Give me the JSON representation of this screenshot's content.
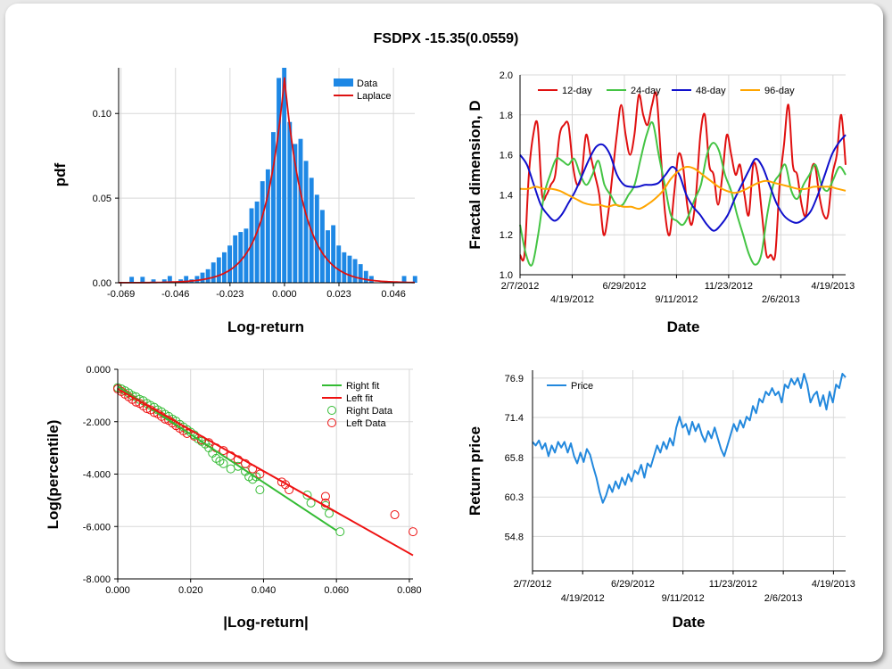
{
  "title": "FSDPX -15.35(0.0559)",
  "colors": {
    "bar": "#1e88e5",
    "laplace": "#dd1111",
    "d12": "#e01010",
    "d24": "#44c444",
    "d48": "#1010cc",
    "d96": "#ffa500",
    "right": "#33bb33",
    "left": "#ee1111",
    "price": "#2288dd"
  },
  "chart_data": [
    {
      "id": "hist",
      "type": "bar",
      "xlabel": "Log-return",
      "ylabel": "pdf",
      "xlim": [
        -0.07,
        0.055
      ],
      "ylim": [
        0,
        0.127
      ],
      "xticks": [
        "-0.069",
        "-0.046",
        "-0.023",
        "0.000",
        "0.023",
        "0.046"
      ],
      "xtick_values": [
        -0.069,
        -0.046,
        -0.023,
        0.0,
        0.023,
        0.046
      ],
      "yticks": [
        "0.00",
        "0.05",
        "0.10"
      ],
      "ytick_values": [
        0.0,
        0.05,
        0.1
      ],
      "legend": [
        "Data",
        "Laplace"
      ],
      "bin_width": 0.0023,
      "bins_x": [
        -0.0645,
        -0.0599,
        -0.0553,
        -0.0507,
        -0.0484,
        -0.0438,
        -0.0415,
        -0.0392,
        -0.0369,
        -0.0346,
        -0.0323,
        -0.03,
        -0.0277,
        -0.0254,
        -0.0231,
        -0.0208,
        -0.0185,
        -0.0162,
        -0.0139,
        -0.0116,
        -0.0093,
        -0.007,
        -0.0047,
        -0.0024,
        -0.0001,
        0.0022,
        0.0045,
        0.0068,
        0.0091,
        0.0114,
        0.0137,
        0.016,
        0.0183,
        0.0206,
        0.0229,
        0.0252,
        0.0275,
        0.0298,
        0.0321,
        0.0344,
        0.0367,
        0.0505,
        0.0551
      ],
      "bins_y": [
        0.0035,
        0.0035,
        0.002,
        0.002,
        0.004,
        0.002,
        0.004,
        0.002,
        0.004,
        0.006,
        0.008,
        0.012,
        0.015,
        0.018,
        0.022,
        0.028,
        0.03,
        0.032,
        0.044,
        0.048,
        0.06,
        0.067,
        0.089,
        0.121,
        0.127,
        0.095,
        0.082,
        0.085,
        0.072,
        0.062,
        0.052,
        0.043,
        0.031,
        0.034,
        0.022,
        0.018,
        0.016,
        0.014,
        0.011,
        0.007,
        0.004,
        0.004,
        0.004
      ],
      "laplace": {
        "mu": 0.0,
        "peak": 0.121,
        "b": 0.0083
      }
    },
    {
      "id": "fractal",
      "type": "line",
      "xlabel": "Date",
      "ylabel": "Fractal dimension, D",
      "ylim": [
        1.0,
        2.0
      ],
      "xlim": [
        0,
        103
      ],
      "yticks": [
        "1.0",
        "1.2",
        "1.4",
        "1.6",
        "1.8",
        "2.0"
      ],
      "ytick_values": [
        1.0,
        1.2,
        1.4,
        1.6,
        1.8,
        2.0
      ],
      "xticks_top": [
        "2/7/2012",
        "6/29/2012",
        "11/23/2012",
        "4/19/2013"
      ],
      "xticks_top_pos": [
        0,
        33,
        66,
        99
      ],
      "xticks_bottom": [
        "4/19/2012",
        "9/11/2012",
        "2/6/2013"
      ],
      "xticks_bottom_pos": [
        16.5,
        49.5,
        82.5
      ],
      "series": [
        {
          "name": "12-day",
          "values": [
            1.1,
            1.1,
            1.5,
            1.7,
            1.75,
            1.4,
            1.4,
            1.45,
            1.5,
            1.7,
            1.75,
            1.75,
            1.55,
            1.45,
            1.5,
            1.7,
            1.6,
            1.5,
            1.4,
            1.2,
            1.3,
            1.5,
            1.7,
            1.85,
            1.7,
            1.6,
            1.7,
            1.9,
            1.8,
            1.75,
            1.85,
            1.9,
            1.6,
            1.3,
            1.2,
            1.4,
            1.6,
            1.55,
            1.35,
            1.25,
            1.4,
            1.7,
            1.8,
            1.55,
            1.5,
            1.35,
            1.5,
            1.7,
            1.6,
            1.5,
            1.55,
            1.4,
            1.3,
            1.55,
            1.5,
            1.3,
            1.1,
            1.1,
            1.1,
            1.45,
            1.65,
            1.85,
            1.55,
            1.5,
            1.35,
            1.3,
            1.5,
            1.55,
            1.4,
            1.3,
            1.3,
            1.5,
            1.6,
            1.8,
            1.55
          ]
        },
        {
          "name": "24-day",
          "values": [
            1.25,
            1.1,
            1.05,
            1.2,
            1.4,
            1.5,
            1.58,
            1.57,
            1.55,
            1.58,
            1.5,
            1.45,
            1.5,
            1.57,
            1.45,
            1.4,
            1.35,
            1.35,
            1.4,
            1.45,
            1.58,
            1.7,
            1.76,
            1.6,
            1.45,
            1.3,
            1.27,
            1.25,
            1.3,
            1.38,
            1.45,
            1.6,
            1.66,
            1.62,
            1.5,
            1.42,
            1.3,
            1.2,
            1.1,
            1.05,
            1.1,
            1.3,
            1.45,
            1.5,
            1.55,
            1.42,
            1.38,
            1.45,
            1.5,
            1.55,
            1.45,
            1.42,
            1.48,
            1.54,
            1.5
          ]
        },
        {
          "name": "48-day",
          "values": [
            1.6,
            1.55,
            1.45,
            1.35,
            1.3,
            1.27,
            1.3,
            1.36,
            1.42,
            1.5,
            1.58,
            1.64,
            1.65,
            1.6,
            1.5,
            1.45,
            1.44,
            1.44,
            1.45,
            1.45,
            1.46,
            1.5,
            1.54,
            1.5,
            1.4,
            1.34,
            1.3,
            1.25,
            1.22,
            1.25,
            1.3,
            1.38,
            1.45,
            1.52,
            1.58,
            1.54,
            1.45,
            1.36,
            1.3,
            1.27,
            1.26,
            1.28,
            1.32,
            1.4,
            1.5,
            1.6,
            1.66,
            1.7
          ]
        },
        {
          "name": "96-day",
          "values": [
            1.43,
            1.43,
            1.44,
            1.43,
            1.43,
            1.42,
            1.4,
            1.38,
            1.36,
            1.35,
            1.35,
            1.34,
            1.35,
            1.34,
            1.34,
            1.33,
            1.35,
            1.38,
            1.42,
            1.48,
            1.52,
            1.54,
            1.53,
            1.5,
            1.47,
            1.44,
            1.42,
            1.41,
            1.42,
            1.44,
            1.46,
            1.47,
            1.46,
            1.45,
            1.44,
            1.43,
            1.43,
            1.44,
            1.44,
            1.44,
            1.43,
            1.42
          ]
        }
      ]
    },
    {
      "id": "tail",
      "type": "scatter",
      "xlabel": "|Log-return|",
      "ylabel": "Log(percentile)",
      "xlim": [
        0,
        0.081
      ],
      "ylim": [
        -8.0,
        0.0
      ],
      "xticks": [
        "0.000",
        "0.020",
        "0.040",
        "0.060",
        "0.080"
      ],
      "xtick_values": [
        0.0,
        0.02,
        0.04,
        0.06,
        0.08
      ],
      "yticks": [
        "0.000",
        "-2.000",
        "-4.000",
        "-6.000",
        "-8.000"
      ],
      "ytick_values": [
        0.0,
        -2.0,
        -4.0,
        -6.0,
        -8.0
      ],
      "legend": [
        "Right fit",
        "Left fit",
        "Right Data",
        "Left Data"
      ],
      "right_fit": {
        "x": [
          0.0,
          0.06
        ],
        "y": [
          -0.65,
          -6.15
        ]
      },
      "left_fit": {
        "x": [
          0.0,
          0.081
        ],
        "y": [
          -0.75,
          -7.1
        ]
      },
      "right_data": {
        "x": [
          0.0,
          0.001,
          0.002,
          0.003,
          0.004,
          0.005,
          0.006,
          0.007,
          0.008,
          0.009,
          0.01,
          0.011,
          0.012,
          0.013,
          0.014,
          0.015,
          0.016,
          0.017,
          0.018,
          0.019,
          0.02,
          0.021,
          0.022,
          0.023,
          0.024,
          0.025,
          0.026,
          0.027,
          0.028,
          0.029,
          0.031,
          0.033,
          0.035,
          0.036,
          0.037,
          0.038,
          0.039,
          0.052,
          0.053,
          0.057,
          0.058,
          0.061
        ],
        "y": [
          -0.7,
          -0.75,
          -0.82,
          -0.9,
          -1.0,
          -1.05,
          -1.15,
          -1.2,
          -1.3,
          -1.38,
          -1.45,
          -1.55,
          -1.62,
          -1.72,
          -1.8,
          -1.9,
          -1.98,
          -2.1,
          -2.2,
          -2.3,
          -2.4,
          -2.5,
          -2.65,
          -2.75,
          -2.85,
          -3.0,
          -3.2,
          -3.4,
          -3.5,
          -3.6,
          -3.8,
          -3.7,
          -3.9,
          -4.1,
          -4.2,
          -4.1,
          -4.6,
          -4.8,
          -5.1,
          -5.2,
          -5.5,
          -6.2
        ]
      },
      "left_data": {
        "x": [
          0.0,
          0.001,
          0.002,
          0.003,
          0.004,
          0.005,
          0.006,
          0.007,
          0.008,
          0.009,
          0.01,
          0.011,
          0.012,
          0.013,
          0.014,
          0.015,
          0.016,
          0.017,
          0.018,
          0.019,
          0.021,
          0.023,
          0.025,
          0.027,
          0.029,
          0.031,
          0.033,
          0.035,
          0.037,
          0.039,
          0.045,
          0.046,
          0.047,
          0.057,
          0.057,
          0.076,
          0.081
        ],
        "y": [
          -0.75,
          -0.85,
          -0.95,
          -1.05,
          -1.15,
          -1.25,
          -1.3,
          -1.4,
          -1.5,
          -1.55,
          -1.65,
          -1.7,
          -1.8,
          -1.9,
          -1.95,
          -2.05,
          -2.15,
          -2.25,
          -2.35,
          -2.45,
          -2.55,
          -2.7,
          -2.8,
          -3.0,
          -3.1,
          -3.3,
          -3.45,
          -3.6,
          -3.8,
          -4.0,
          -4.3,
          -4.4,
          -4.6,
          -4.85,
          -5.1,
          -5.55,
          -6.2
        ]
      }
    },
    {
      "id": "price",
      "type": "line",
      "xlabel": "Date",
      "ylabel": "Return price",
      "ylim": [
        50.0,
        78.0
      ],
      "xlim": [
        0,
        103
      ],
      "yticks": [
        "54.8",
        "60.3",
        "65.8",
        "71.4",
        "76.9"
      ],
      "ytick_values": [
        54.8,
        60.3,
        65.8,
        71.4,
        76.9
      ],
      "xticks_top": [
        "2/7/2012",
        "6/29/2012",
        "11/23/2012",
        "4/19/2013"
      ],
      "xticks_top_pos": [
        0,
        33,
        66,
        99
      ],
      "xticks_bottom": [
        "4/19/2012",
        "9/11/2012",
        "2/6/2013"
      ],
      "xticks_bottom_pos": [
        16.5,
        49.5,
        82.5
      ],
      "legend": [
        "Price"
      ],
      "values": [
        68.0,
        67.5,
        68.2,
        67.0,
        67.8,
        66.0,
        67.5,
        66.5,
        68.0,
        67.2,
        68.0,
        66.5,
        67.8,
        66.0,
        65.0,
        66.5,
        65.2,
        67.0,
        66.2,
        64.5,
        63.0,
        61.0,
        59.5,
        60.5,
        62.0,
        61.0,
        62.5,
        61.5,
        63.0,
        62.0,
        63.5,
        62.5,
        64.0,
        63.5,
        64.8,
        63.0,
        65.0,
        64.5,
        66.0,
        67.5,
        66.5,
        68.0,
        67.0,
        68.5,
        67.5,
        70.0,
        71.5,
        70.0,
        70.5,
        69.0,
        70.8,
        69.5,
        70.5,
        69.0,
        68.0,
        69.5,
        68.5,
        70.0,
        68.5,
        67.0,
        66.0,
        67.5,
        69.0,
        70.5,
        69.5,
        71.0,
        70.0,
        71.5,
        71.0,
        73.0,
        72.0,
        74.0,
        73.5,
        75.0,
        74.5,
        75.5,
        74.5,
        75.0,
        73.5,
        76.0,
        75.5,
        76.8,
        76.0,
        76.9,
        75.5,
        77.5,
        76.0,
        73.5,
        74.5,
        75.0,
        73.0,
        74.5,
        72.5,
        75.0,
        73.5,
        76.0,
        75.5,
        77.5,
        77.0
      ]
    }
  ]
}
